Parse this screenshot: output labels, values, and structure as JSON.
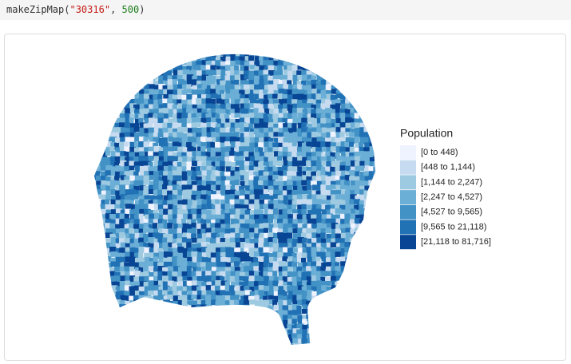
{
  "code": {
    "tokens": [
      "makeZipMap(",
      "\"30316\"",
      ", ",
      "500",
      ")"
    ]
  },
  "legend": {
    "title": "Population",
    "items": [
      {
        "label": "[0 to 448)",
        "color": "#eff3ff"
      },
      {
        "label": "[448 to 1,144)",
        "color": "#c6dbef"
      },
      {
        "label": "[1,144 to 2,247)",
        "color": "#9ecae1"
      },
      {
        "label": "[2,247 to 4,527)",
        "color": "#6baed6"
      },
      {
        "label": "[4,527 to 9,565)",
        "color": "#4292c6"
      },
      {
        "label": "[9,565 to 21,118)",
        "color": "#2171b5"
      },
      {
        "label": "[21,118 to 81,716]",
        "color": "#084594"
      }
    ]
  }
}
